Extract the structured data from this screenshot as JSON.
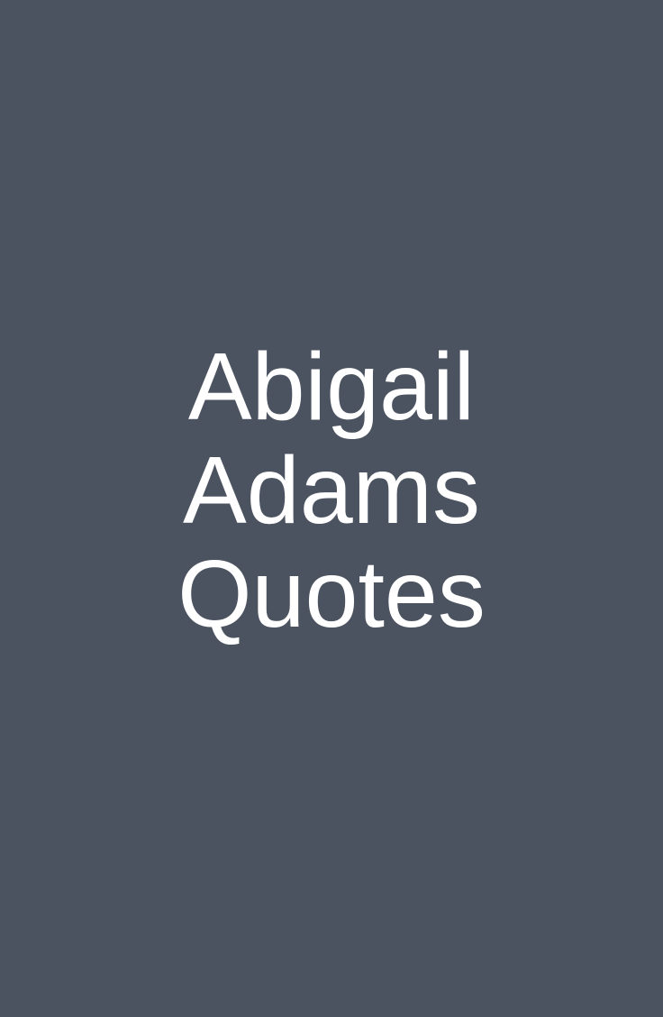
{
  "background_color": "#4c5360",
  "text_color": "#ffffff",
  "title": {
    "line1": "Abigail",
    "line2": "Adams",
    "line3": "Quotes"
  }
}
